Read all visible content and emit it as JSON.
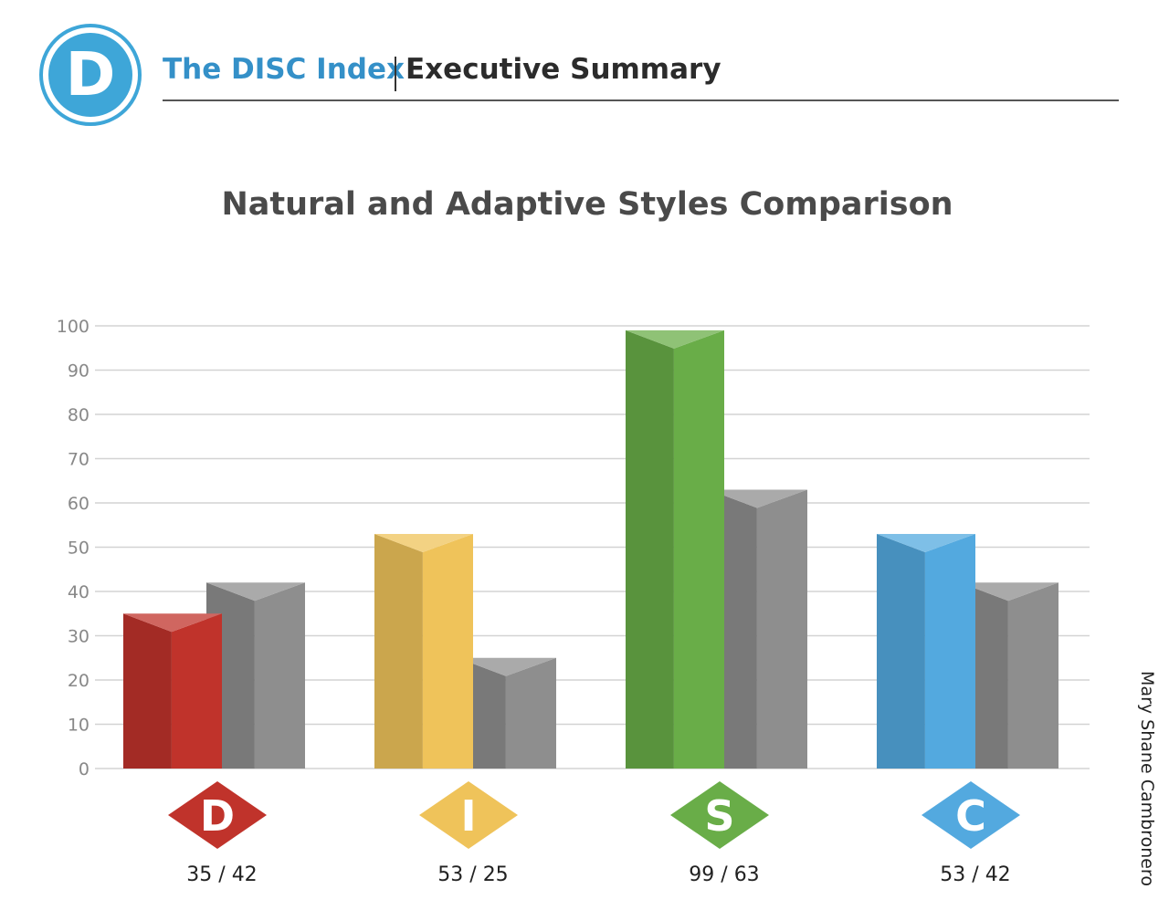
{
  "header": {
    "logo_letter": "D",
    "brand": "The DISC Index",
    "subtitle": "Executive Summary"
  },
  "chart_data": {
    "type": "bar",
    "title": "Natural and Adaptive Styles Comparison",
    "categories": [
      "D",
      "I",
      "S",
      "C"
    ],
    "series": [
      {
        "values": [
          35,
          53,
          99,
          53
        ]
      },
      {
        "values": [
          42,
          25,
          63,
          42
        ]
      }
    ],
    "value_labels": [
      "35 / 42",
      "53 / 25",
      "99 / 63",
      "53 / 42"
    ],
    "yticks": [
      0,
      10,
      20,
      30,
      40,
      50,
      60,
      70,
      80,
      90,
      100
    ],
    "ylim": [
      0,
      100
    ],
    "grid": true,
    "colors": {
      "D": "#c0332b",
      "I": "#efc35a",
      "S": "#69ad48",
      "C": "#53a9df",
      "adaptive": "#8e8e8e"
    }
  },
  "side_label": "Mary Shane Cambronero"
}
